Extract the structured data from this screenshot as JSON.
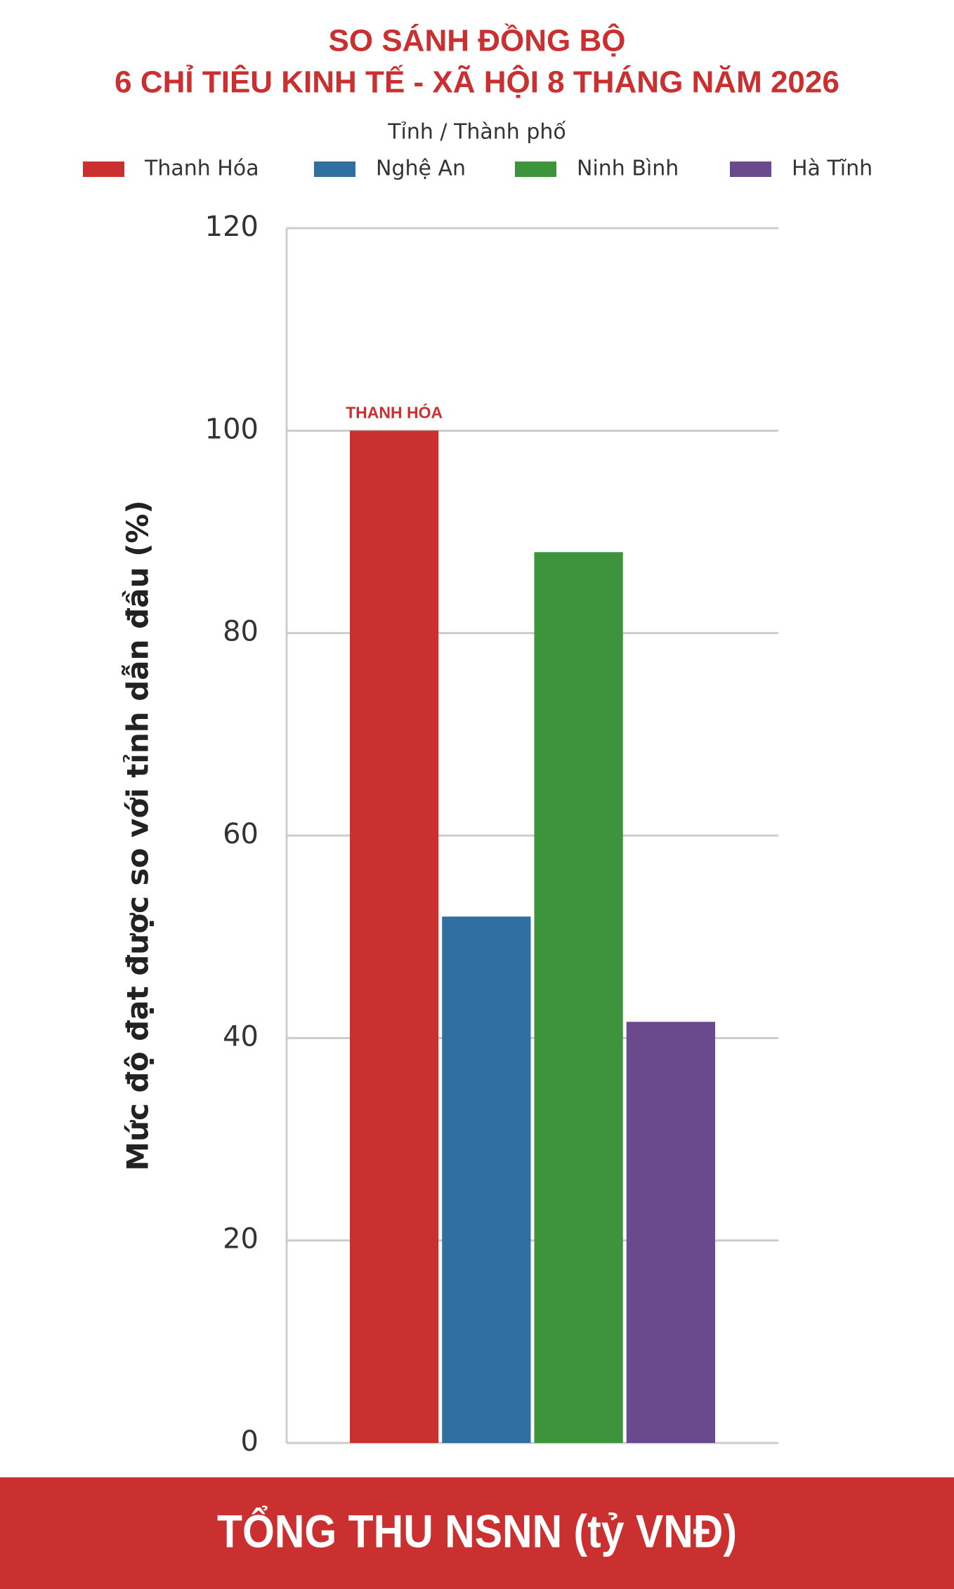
{
  "chart_data": {
    "type": "bar",
    "title": [
      "SO SÁNH ĐỒNG BỘ",
      "6 CHỈ TIÊU KINH TẾ - XÃ HỘI 8 THÁNG NĂM 2026"
    ],
    "legend_title": "Tỉnh / Thành phố",
    "ylabel": "Mức độ đạt được so với tỉnh dẫn đầu (%)",
    "xlabel": "TỔNG THU NSNN (tỷ VNĐ)",
    "annotation": "THANH HÓA",
    "categories": [
      null
    ],
    "series": [
      {
        "name": "Thanh Hóa",
        "color": "#c9302f",
        "values": [
          100
        ]
      },
      {
        "name": "Nghệ An",
        "color": "#2f70a0",
        "values": [
          52
        ]
      },
      {
        "name": "Ninh Bình",
        "color": "#3e933d",
        "values": [
          88
        ]
      },
      {
        "name": "Hà Tĩnh",
        "color": "#6a4a8c",
        "values": [
          41.6
        ]
      }
    ],
    "ylim": [
      0,
      120
    ],
    "yticks": [
      0,
      20,
      40,
      60,
      80,
      100,
      120
    ],
    "grid": true,
    "legend": "top"
  }
}
